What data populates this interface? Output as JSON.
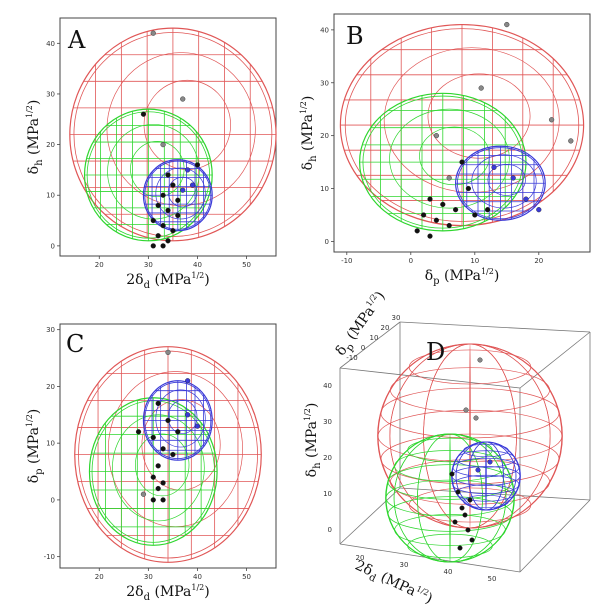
{
  "figure": {
    "panels": [
      "A",
      "B",
      "C",
      "D"
    ]
  },
  "colors": {
    "red_sphere": "#e05656",
    "green_sphere": "#2ed62e",
    "blue_sphere": "#3a3ad8",
    "points_dark": "#111111",
    "points_grey": "#888888",
    "frame": "#444444"
  },
  "chart_data": [
    {
      "panel": "A",
      "type": "scatter",
      "xlabel": "2δd (MPa1/2)",
      "ylabel": "δh (MPa1/2)",
      "xlim": [
        12,
        56
      ],
      "ylim": [
        -2,
        45
      ],
      "xticks": [
        20,
        30,
        40,
        50
      ],
      "yticks": [
        0,
        10,
        20,
        30,
        40
      ],
      "spheres": [
        {
          "color": "red",
          "cx": 35,
          "cy": 22,
          "r": 21
        },
        {
          "color": "green",
          "cx": 30,
          "cy": 14,
          "r": 13
        },
        {
          "color": "blue",
          "cx": 36,
          "cy": 10,
          "r": 7
        }
      ],
      "points": [
        {
          "x": 31,
          "y": 42,
          "c": "grey"
        },
        {
          "x": 37,
          "y": 29,
          "c": "grey"
        },
        {
          "x": 29,
          "y": 26,
          "c": "dark"
        },
        {
          "x": 33,
          "y": 20,
          "c": "grey"
        },
        {
          "x": 34,
          "y": 14,
          "c": "dark"
        },
        {
          "x": 35,
          "y": 12,
          "c": "dark"
        },
        {
          "x": 33,
          "y": 10,
          "c": "dark"
        },
        {
          "x": 36,
          "y": 9,
          "c": "dark"
        },
        {
          "x": 32,
          "y": 8,
          "c": "dark"
        },
        {
          "x": 34,
          "y": 7,
          "c": "dark"
        },
        {
          "x": 36,
          "y": 6,
          "c": "dark"
        },
        {
          "x": 31,
          "y": 5,
          "c": "dark"
        },
        {
          "x": 33,
          "y": 4,
          "c": "dark"
        },
        {
          "x": 35,
          "y": 3,
          "c": "dark"
        },
        {
          "x": 32,
          "y": 2,
          "c": "dark"
        },
        {
          "x": 34,
          "y": 1,
          "c": "dark"
        },
        {
          "x": 31,
          "y": 0,
          "c": "dark"
        },
        {
          "x": 33,
          "y": 0,
          "c": "dark"
        },
        {
          "x": 39,
          "y": 12,
          "c": "blue"
        },
        {
          "x": 38,
          "y": 15,
          "c": "blue"
        },
        {
          "x": 40,
          "y": 16,
          "c": "dark"
        },
        {
          "x": 37,
          "y": 11,
          "c": "blue"
        }
      ]
    },
    {
      "panel": "B",
      "type": "scatter",
      "xlabel": "δp (MPa1/2)",
      "ylabel": "δh (MPa1/2)",
      "xlim": [
        -12,
        28
      ],
      "ylim": [
        -2,
        43
      ],
      "xticks": [
        -10,
        0,
        10,
        20
      ],
      "yticks": [
        0,
        10,
        20,
        30,
        40
      ],
      "spheres": [
        {
          "color": "red",
          "cx": 8,
          "cy": 22,
          "r": 19
        },
        {
          "color": "green",
          "cx": 5,
          "cy": 15,
          "r": 13
        },
        {
          "color": "blue",
          "cx": 14,
          "cy": 11,
          "r": 7
        }
      ],
      "points": [
        {
          "x": 15,
          "y": 41,
          "c": "grey"
        },
        {
          "x": 11,
          "y": 29,
          "c": "grey"
        },
        {
          "x": 22,
          "y": 23,
          "c": "grey"
        },
        {
          "x": 25,
          "y": 19,
          "c": "grey"
        },
        {
          "x": 4,
          "y": 20,
          "c": "grey"
        },
        {
          "x": 8,
          "y": 15,
          "c": "dark"
        },
        {
          "x": 6,
          "y": 12,
          "c": "grey"
        },
        {
          "x": 9,
          "y": 10,
          "c": "dark"
        },
        {
          "x": 3,
          "y": 8,
          "c": "dark"
        },
        {
          "x": 5,
          "y": 7,
          "c": "dark"
        },
        {
          "x": 7,
          "y": 6,
          "c": "dark"
        },
        {
          "x": 2,
          "y": 5,
          "c": "dark"
        },
        {
          "x": 4,
          "y": 4,
          "c": "dark"
        },
        {
          "x": 6,
          "y": 3,
          "c": "dark"
        },
        {
          "x": 1,
          "y": 2,
          "c": "dark"
        },
        {
          "x": 3,
          "y": 1,
          "c": "dark"
        },
        {
          "x": 10,
          "y": 5,
          "c": "dark"
        },
        {
          "x": 12,
          "y": 6,
          "c": "dark"
        },
        {
          "x": 16,
          "y": 12,
          "c": "blue"
        },
        {
          "x": 18,
          "y": 8,
          "c": "blue"
        },
        {
          "x": 20,
          "y": 6,
          "c": "blue"
        },
        {
          "x": 13,
          "y": 14,
          "c": "blue"
        }
      ]
    },
    {
      "panel": "C",
      "type": "scatter",
      "xlabel": "2δd (MPa1/2)",
      "ylabel": "δp (MPa1/2)",
      "xlim": [
        12,
        56
      ],
      "ylim": [
        -12,
        31
      ],
      "xticks": [
        20,
        30,
        40,
        50
      ],
      "yticks": [
        -10,
        0,
        10,
        20,
        30
      ],
      "spheres": [
        {
          "color": "red",
          "cx": 34,
          "cy": 8,
          "r": 19
        },
        {
          "color": "green",
          "cx": 31,
          "cy": 5,
          "r": 13
        },
        {
          "color": "blue",
          "cx": 36,
          "cy": 14,
          "r": 7
        }
      ],
      "points": [
        {
          "x": 34,
          "y": 26,
          "c": "grey"
        },
        {
          "x": 38,
          "y": 21,
          "c": "blue"
        },
        {
          "x": 32,
          "y": 17,
          "c": "dark"
        },
        {
          "x": 34,
          "y": 14,
          "c": "dark"
        },
        {
          "x": 36,
          "y": 12,
          "c": "dark"
        },
        {
          "x": 31,
          "y": 11,
          "c": "dark"
        },
        {
          "x": 33,
          "y": 9,
          "c": "dark"
        },
        {
          "x": 35,
          "y": 8,
          "c": "dark"
        },
        {
          "x": 32,
          "y": 6,
          "c": "dark"
        },
        {
          "x": 31,
          "y": 4,
          "c": "dark"
        },
        {
          "x": 33,
          "y": 3,
          "c": "dark"
        },
        {
          "x": 32,
          "y": 2,
          "c": "dark"
        },
        {
          "x": 31,
          "y": 0,
          "c": "dark"
        },
        {
          "x": 33,
          "y": 0,
          "c": "dark"
        },
        {
          "x": 29,
          "y": 1,
          "c": "grey"
        },
        {
          "x": 38,
          "y": 15,
          "c": "blue"
        },
        {
          "x": 40,
          "y": 13,
          "c": "blue"
        },
        {
          "x": 28,
          "y": 12,
          "c": "dark"
        }
      ]
    },
    {
      "panel": "D",
      "type": "scatter",
      "projection": "3d",
      "xlabel": "2δd (MPa1/2)",
      "ylabel": "δp (MPa1/2)",
      "zlabel": "δh (MPa1/2)",
      "xticks": [
        20,
        30,
        40,
        50
      ],
      "yticks": [
        -10,
        0,
        10,
        20,
        30
      ],
      "zticks": [
        0,
        10,
        20,
        30,
        40
      ],
      "spheres": [
        {
          "color": "red",
          "cx": 35,
          "cy": 8,
          "cz": 22,
          "r": 20
        },
        {
          "color": "green",
          "cx": 31,
          "cy": 5,
          "cz": 14,
          "r": 13
        },
        {
          "color": "blue",
          "cx": 36,
          "cy": 14,
          "cz": 10,
          "r": 7
        }
      ]
    }
  ]
}
